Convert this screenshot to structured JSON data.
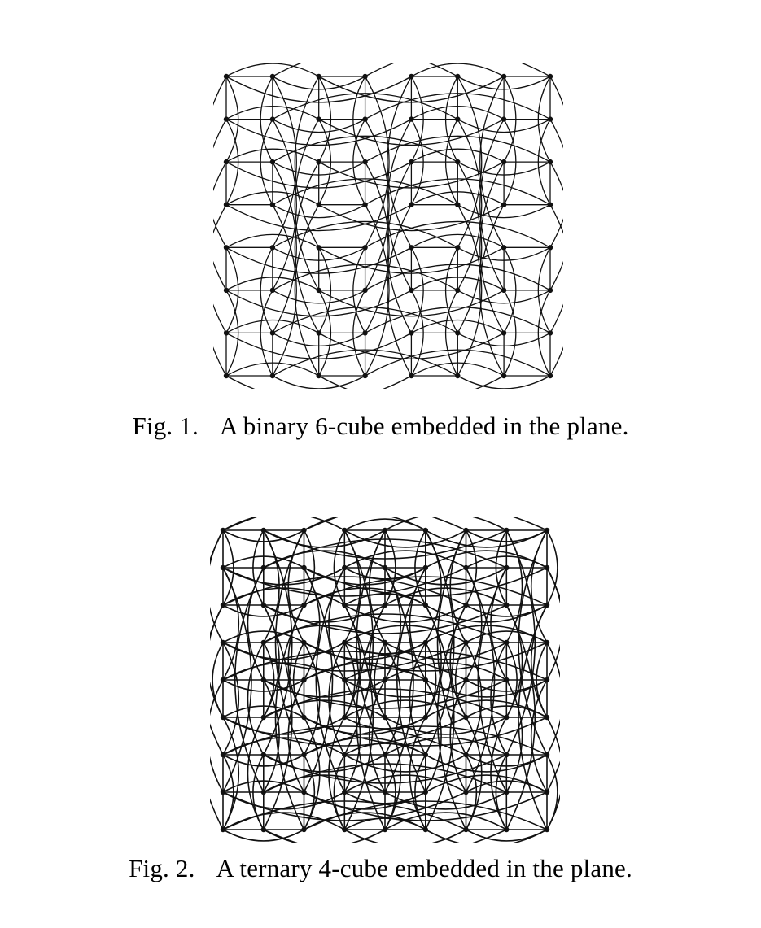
{
  "figures": [
    {
      "id": "fig1",
      "label": "Fig. 1.",
      "caption": "A binary 6-cube embedded in the plane.",
      "graph": {
        "radix": 2,
        "dimensions": 6,
        "grid_columns": 8,
        "grid_rows": 8
      }
    },
    {
      "id": "fig2",
      "label": "Fig. 2.",
      "caption": "A ternary 4-cube embedded in the plane.",
      "graph": {
        "radix": 3,
        "dimensions": 4,
        "grid_columns": 9,
        "grid_rows": 9
      }
    }
  ],
  "colors": {
    "ink": "#111111",
    "background": "#ffffff"
  }
}
